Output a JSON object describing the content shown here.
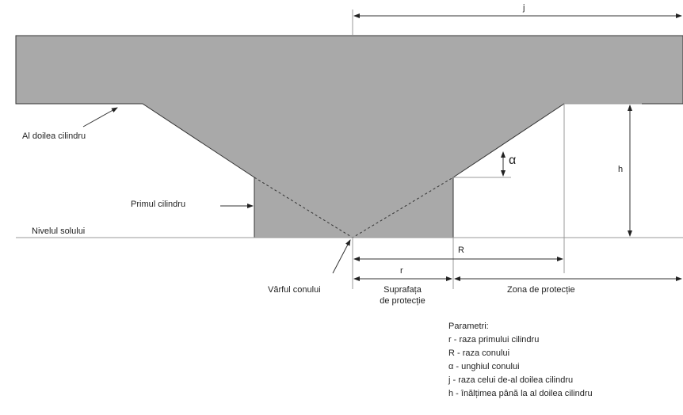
{
  "labels": {
    "j": "j",
    "second_cylinder": "Al doilea cilindru",
    "alpha": "α",
    "h": "h",
    "first_cylinder": "Primul cilindru",
    "ground": "Nivelul solului",
    "R": "R",
    "r": "r",
    "cone_tip": "Vârful conului",
    "protection_surface": [
      "Suprafața",
      "de protecție"
    ],
    "protection_zone": "Zona de protecție"
  },
  "legend": {
    "title": "Parametri:",
    "items": [
      "r - raza primului cilindru",
      "R - raza conului",
      "α - unghiul conului",
      "j - raza celui de-al doilea cilindru",
      "h - înălțimea până la al doilea cilindru"
    ]
  }
}
